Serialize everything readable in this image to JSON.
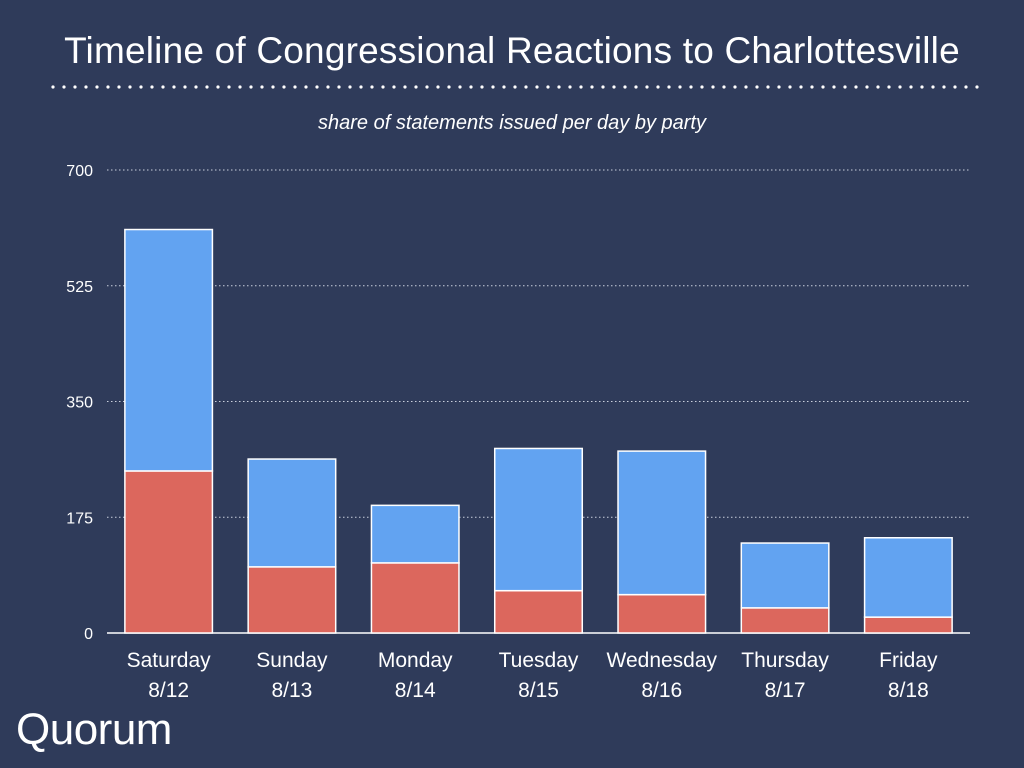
{
  "header": {
    "title": "Timeline of Congressional Reactions to Charlottesville",
    "subtitle": "share of statements issued per day by party"
  },
  "branding": {
    "logo_text": "Quorum"
  },
  "colors": {
    "background": "#2f3b5a",
    "democrat": "#62a3f1",
    "republican": "#dc675d",
    "text": "#ffffff"
  },
  "chart_data": {
    "type": "bar",
    "stacked": true,
    "categories": [
      [
        "Saturday",
        "8/12"
      ],
      [
        "Sunday",
        "8/13"
      ],
      [
        "Monday",
        "8/14"
      ],
      [
        "Tuesday",
        "8/15"
      ],
      [
        "Wednesday",
        "8/16"
      ],
      [
        "Thursday",
        "8/17"
      ],
      [
        "Friday",
        "8/18"
      ]
    ],
    "series": [
      {
        "color": "#dc675d",
        "values": [
          245,
          100,
          106,
          64,
          58,
          38,
          24
        ]
      },
      {
        "color": "#62a3f1",
        "values": [
          365,
          163,
          87,
          215,
          217,
          98,
          120
        ]
      }
    ],
    "yticks": [
      0,
      175,
      350,
      525,
      700
    ],
    "ylim": [
      0,
      700
    ],
    "grid": true,
    "legend": "none"
  }
}
